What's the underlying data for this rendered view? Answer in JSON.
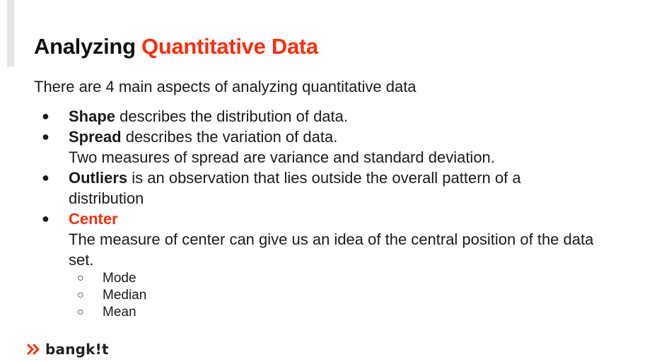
{
  "slide": {
    "title_plain": "Analyzing ",
    "title_accent": "Quantitative Data",
    "intro": "There are 4 main aspects of analyzing quantitative data",
    "bullets": [
      {
        "bold": "Shape",
        "text": " describes the distribution of data."
      },
      {
        "bold": "Spread",
        "text": " describes the variation of data.",
        "line2": "Two measures of spread are variance and standard deviation."
      },
      {
        "bold": "Outliers",
        "text": " is an observation that lies outside the overall pattern of a distribution"
      },
      {
        "bold": "Center",
        "line2": "The measure of center can give us an idea of the central position of the data set.",
        "sub_items": [
          "Mode",
          "Median",
          "Mean"
        ]
      }
    ],
    "bullet_glyph": "●",
    "sub_glyph": "○"
  },
  "logo": {
    "text": "bangk!t",
    "icon": "chevron-logo-icon"
  },
  "colors": {
    "accent": "#f52f0f",
    "text": "#1a1a1a"
  }
}
